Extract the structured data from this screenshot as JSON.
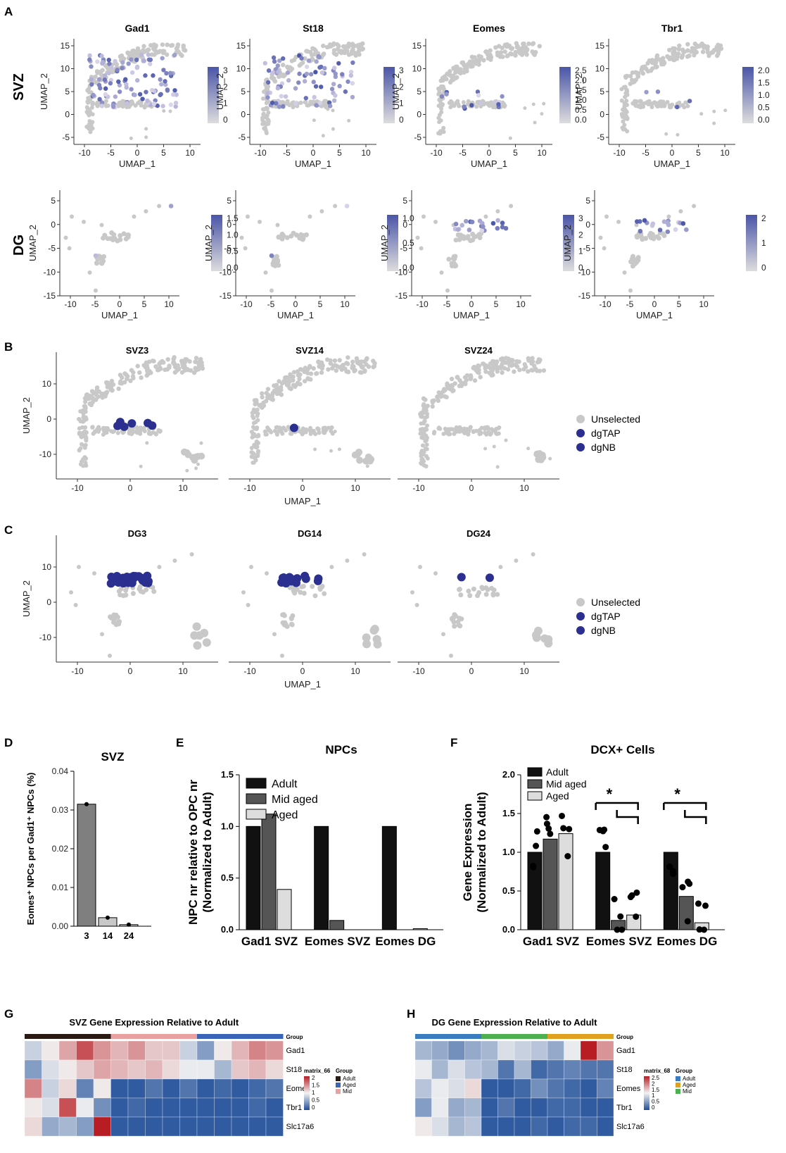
{
  "panel_labels": {
    "a": "A",
    "b": "B",
    "c": "C",
    "d": "D",
    "e": "E",
    "f": "F",
    "g": "G",
    "h": "H"
  },
  "colors": {
    "grey": "#c8c8c8",
    "dark_blue": "#2b2f8f",
    "low": "#dcd6ea",
    "high": "#4a55a8",
    "black": "#111111",
    "dark_grey": "#555555",
    "light_grey": "#dddddd"
  },
  "panel_a": {
    "genes": [
      "Gad1",
      "St18",
      "Eomes",
      "Tbr1"
    ],
    "row_labels": [
      "SVZ",
      "DG"
    ],
    "x_label": "UMAP_1",
    "y_label": "UMAP_2",
    "svz_x_ticks": [
      "-10",
      "-5",
      "0",
      "5",
      "10"
    ],
    "svz_y_ticks": [
      "15",
      "10",
      "5",
      "0",
      "-5"
    ],
    "dg_x_ticks": [
      "-10",
      "-5",
      "0",
      "5",
      "10"
    ],
    "dg_y_ticks": [
      "5",
      "0",
      "-5",
      "-10",
      "-15"
    ],
    "svz_scales": [
      [
        "3",
        "2",
        "1",
        "0"
      ],
      [
        "3",
        "2",
        "1",
        "0"
      ],
      [
        "2.5",
        "2.0",
        "1.5",
        "1.0",
        "0.5",
        "0.0"
      ],
      [
        "2.0",
        "1.5",
        "1.0",
        "0.5",
        "0.0"
      ]
    ],
    "dg_scales": [
      [
        "1.5",
        "1.0",
        "0.5",
        "0.0"
      ],
      [
        "1.0",
        "0.5",
        "0.0"
      ],
      [
        "3",
        "2",
        "1",
        "0"
      ],
      [
        "2",
        "1",
        "0"
      ]
    ]
  },
  "panel_b": {
    "titles": [
      "SVZ3",
      "SVZ14",
      "SVZ24"
    ],
    "x_label": "UMAP_1",
    "y_label": "UMAP_2",
    "x_ticks": [
      "-10",
      "0",
      "10"
    ],
    "y_ticks": [
      "10",
      "0",
      "-10"
    ],
    "legend": [
      "Unselected",
      "dgTAP",
      "dgNB"
    ]
  },
  "panel_c": {
    "titles": [
      "DG3",
      "DG14",
      "DG24"
    ],
    "x_label": "UMAP_1",
    "y_label": "UMAP_2",
    "x_ticks": [
      "-10",
      "0",
      "10"
    ],
    "y_ticks": [
      "10",
      "0",
      "-10"
    ],
    "legend": [
      "Unselected",
      "dgTAP",
      "dgNB"
    ]
  },
  "chart_data": [
    {
      "id": "D",
      "type": "bar",
      "title": "SVZ",
      "categories": [
        "3",
        "14",
        "24"
      ],
      "values": [
        0.0315,
        0.0022,
        0.0004
      ],
      "ylabel": "Eomes⁺ NPCs per Gad1⁺ NPCs (%)",
      "ylim": [
        0,
        0.04
      ],
      "yticks": [
        "0.00",
        "0.01",
        "0.02",
        "0.03",
        "0.04"
      ]
    },
    {
      "id": "E",
      "type": "bar",
      "title": "NPCs",
      "categories": [
        "Gad1 SVZ",
        "Eomes SVZ",
        "Eomes DG"
      ],
      "series": [
        {
          "name": "Adult",
          "values": [
            1.0,
            1.0,
            1.0
          ]
        },
        {
          "name": "Mid aged",
          "values": [
            1.12,
            0.09,
            0.0
          ]
        },
        {
          "name": "Aged",
          "values": [
            0.39,
            0.0,
            0.01
          ]
        }
      ],
      "ylabel": "NPC nr relative to OPC nr",
      "ylabel2": "(Normalized to Adult)",
      "ylim": [
        0,
        1.5
      ],
      "yticks": [
        "0.0",
        "0.5",
        "1.0",
        "1.5"
      ]
    },
    {
      "id": "F",
      "type": "bar",
      "title": "DCX+ Cells",
      "categories": [
        "Gad1 SVZ",
        "Eomes SVZ",
        "Eomes DG"
      ],
      "series": [
        {
          "name": "Adult",
          "values": [
            1.0,
            1.0,
            1.0
          ]
        },
        {
          "name": "Mid aged",
          "values": [
            1.17,
            0.12,
            0.43
          ]
        },
        {
          "name": "Aged",
          "values": [
            1.24,
            0.19,
            0.09
          ]
        }
      ],
      "ylabel": "Gene Expression",
      "ylabel2": "(Normalized to Adult)",
      "ylim": [
        0,
        2.0
      ],
      "yticks": [
        "0.0",
        "0.5",
        "1.0",
        "1.5",
        "2.0"
      ],
      "significance": "*"
    },
    {
      "id": "G",
      "type": "heatmap",
      "title": "SVZ Gene Expression Relative to Adult",
      "rows": [
        "Gad1",
        "St18",
        "Eomes",
        "Tbr1",
        "Slc17a6"
      ],
      "group_label": "Group",
      "legend_title": "matrix_66",
      "legend_ticks": [
        "2",
        "1.5",
        "1",
        "0.5",
        "0"
      ],
      "groups": [
        "Adult",
        "Aged",
        "Mid"
      ],
      "values": [
        [
          1.0,
          1.3,
          1.7,
          2.2,
          1.8,
          1.6,
          1.8,
          1.5,
          1.5,
          1.0,
          0.6,
          1.3,
          1.6,
          1.9,
          1.8
        ],
        [
          0.6,
          1.1,
          1.3,
          1.5,
          1.7,
          1.6,
          1.5,
          1.6,
          1.4,
          1.2,
          1.2,
          0.8,
          1.5,
          1.6,
          1.4
        ],
        [
          1.9,
          1.0,
          1.4,
          0.4,
          1.3,
          0.1,
          0.1,
          0.3,
          0.1,
          0.3,
          0.1,
          0.2,
          0.1,
          0.2,
          0.3
        ],
        [
          1.3,
          1.1,
          2.2,
          1.2,
          0.5,
          0.1,
          0.2,
          0.1,
          0.1,
          0.1,
          0.1,
          0.1,
          0.1,
          0.2,
          0.1
        ],
        [
          1.4,
          0.7,
          0.8,
          0.6,
          2.5,
          0.1,
          0.1,
          0.1,
          0.1,
          0.1,
          0.1,
          0.1,
          0.1,
          0.1,
          0.1
        ]
      ]
    },
    {
      "id": "H",
      "type": "heatmap",
      "title": "DG Gene Expression Relative to Adult",
      "rows": [
        "Gad1",
        "St18",
        "Eomes",
        "Tbr1",
        "Slc17a6"
      ],
      "group_label": "Group",
      "legend_title": "matrix_68",
      "legend_ticks": [
        "2.5",
        "2",
        "1.5",
        "1",
        "0.5",
        "0"
      ],
      "groups": [
        "Adult",
        "Aged",
        "Mid"
      ],
      "values": [
        [
          0.8,
          0.7,
          0.5,
          0.7,
          0.8,
          1.1,
          1.0,
          0.9,
          0.7,
          1.2,
          2.5,
          1.8
        ],
        [
          1.2,
          0.8,
          1.1,
          0.9,
          0.8,
          0.3,
          0.8,
          0.2,
          0.3,
          0.4,
          0.3,
          0.3
        ],
        [
          0.9,
          1.2,
          1.1,
          1.4,
          0.1,
          0.1,
          0.2,
          0.5,
          0.3,
          0.2,
          0.1,
          0.4
        ],
        [
          0.6,
          1.2,
          0.7,
          0.8,
          0.1,
          0.3,
          0.1,
          0.1,
          0.2,
          0.2,
          0.1,
          0.1
        ],
        [
          1.3,
          1.1,
          0.8,
          0.9,
          0.1,
          0.1,
          0.1,
          0.2,
          0.1,
          0.2,
          0.2,
          0.1
        ]
      ]
    }
  ]
}
